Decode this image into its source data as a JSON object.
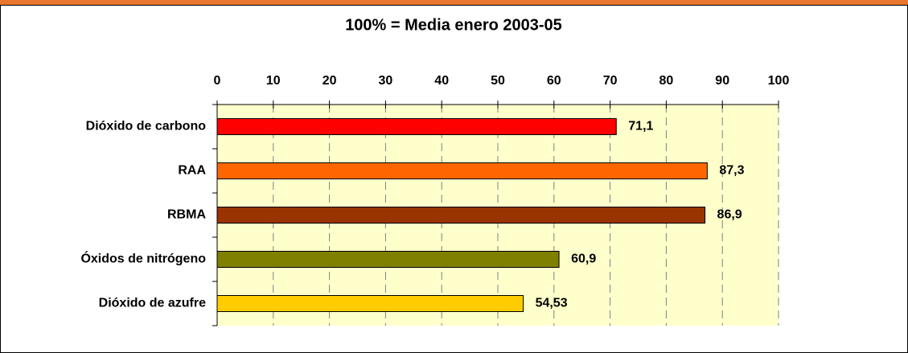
{
  "chart_data": {
    "type": "bar",
    "orientation": "horizontal",
    "title": "100% = Media enero 2003-05",
    "categories": [
      "Dióxido de carbono",
      "RAA",
      "RBMA",
      "Óxidos de nitrógeno",
      "Dióxido de azufre"
    ],
    "values": [
      71.1,
      87.3,
      86.9,
      60.9,
      54.53
    ],
    "value_labels": [
      "71,1",
      "87,3",
      "86,9",
      "60,9",
      "54,53"
    ],
    "colors": [
      "#ff0000",
      "#ff6600",
      "#993300",
      "#808000",
      "#ffcc00"
    ],
    "xlim": [
      0,
      100
    ],
    "xticks": [
      0,
      10,
      20,
      30,
      40,
      50,
      60,
      70,
      80,
      90,
      100
    ],
    "grid": true
  }
}
